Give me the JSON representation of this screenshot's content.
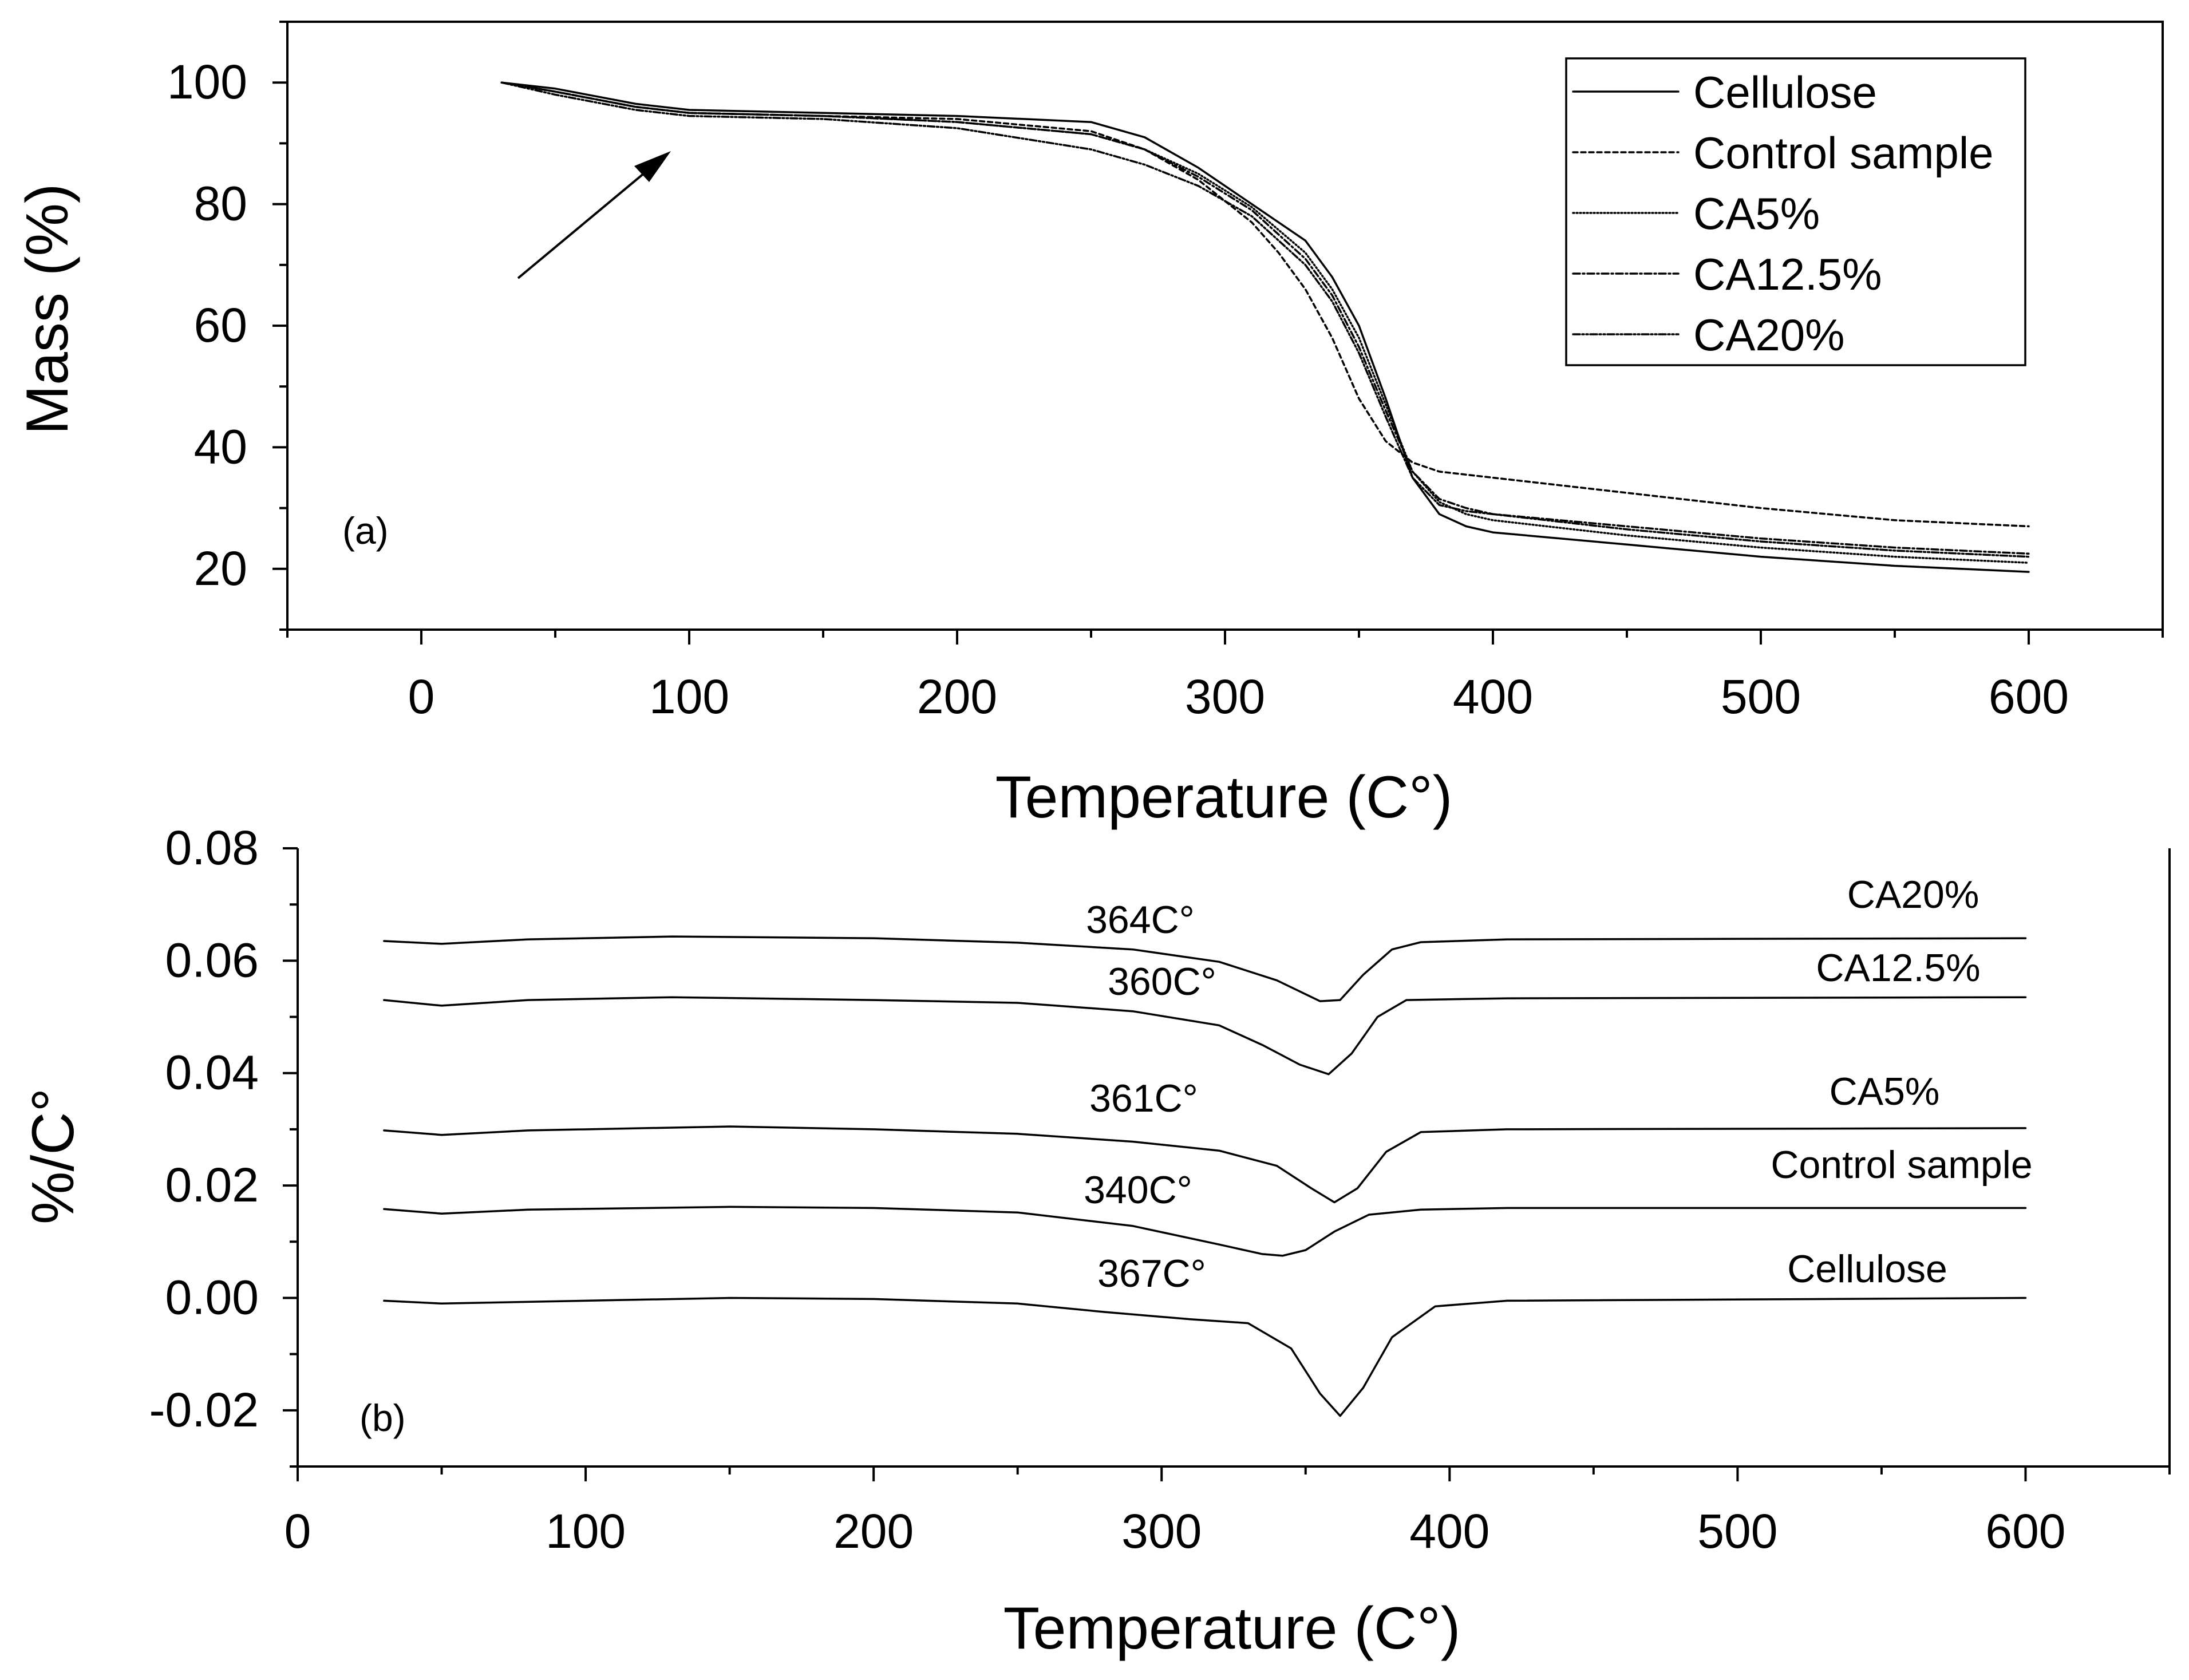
{
  "chart_data": [
    {
      "panel": "(a)",
      "type": "line",
      "xlabel": "Temperature (C°)",
      "ylabel": "Mass (%)",
      "xlim": [
        -50,
        650
      ],
      "ylim": [
        10,
        110
      ],
      "xticks": [
        0,
        100,
        200,
        300,
        400,
        500,
        600
      ],
      "yticks": [
        20,
        40,
        60,
        80,
        100
      ],
      "legend_position": "top-right",
      "series": [
        {
          "name": "Cellulose",
          "dash": "solid",
          "x": [
            30,
            50,
            80,
            100,
            150,
            200,
            250,
            270,
            290,
            310,
            330,
            340,
            350,
            360,
            370,
            380,
            390,
            400,
            450,
            500,
            550,
            600
          ],
          "y": [
            100,
            99,
            96.5,
            95.5,
            95,
            94.5,
            93.5,
            91,
            86,
            80,
            74,
            68,
            60,
            48,
            35,
            29,
            27,
            26,
            24,
            22,
            20.5,
            19.5
          ]
        },
        {
          "name": "Control sample",
          "dash": "8,6",
          "x": [
            30,
            50,
            80,
            100,
            150,
            200,
            250,
            270,
            290,
            310,
            320,
            330,
            340,
            350,
            360,
            370,
            380,
            400,
            450,
            500,
            550,
            600
          ],
          "y": [
            100,
            98.5,
            96,
            95,
            94.5,
            94,
            92,
            89,
            84,
            77,
            72,
            66,
            58,
            48,
            41,
            37.5,
            36,
            35,
            32.5,
            30,
            28,
            27
          ]
        },
        {
          "name": "CA5%",
          "dash": "2,4",
          "x": [
            30,
            50,
            80,
            100,
            150,
            200,
            250,
            270,
            290,
            310,
            330,
            340,
            350,
            360,
            370,
            380,
            390,
            400,
            450,
            500,
            550,
            600
          ],
          "y": [
            100,
            98.5,
            96,
            95,
            94.5,
            93.5,
            91.5,
            89,
            85,
            79.5,
            72,
            66,
            58,
            47,
            36,
            31,
            29,
            28,
            25.5,
            23.5,
            22,
            21
          ]
        },
        {
          "name": "CA12.5%",
          "dash": "12,5,3,5",
          "x": [
            30,
            50,
            80,
            100,
            150,
            200,
            250,
            270,
            290,
            310,
            330,
            340,
            350,
            360,
            370,
            380,
            390,
            400,
            450,
            500,
            550,
            600
          ],
          "y": [
            100,
            98.5,
            96,
            95,
            94.5,
            93.5,
            91.5,
            89,
            84.5,
            79,
            71,
            65,
            56.5,
            46,
            36,
            31.5,
            30,
            29,
            27,
            25,
            23.5,
            22.5
          ]
        },
        {
          "name": "CA20%",
          "dash": "12,4,3,4,3,4",
          "x": [
            30,
            50,
            80,
            100,
            150,
            200,
            250,
            270,
            290,
            310,
            330,
            340,
            350,
            360,
            370,
            380,
            390,
            400,
            450,
            500,
            550,
            600
          ],
          "y": [
            100,
            98,
            95.5,
            94.5,
            94,
            92.5,
            89,
            86.5,
            83,
            78,
            70,
            64,
            55.5,
            45,
            35,
            30.5,
            29.5,
            29,
            26.5,
            24.5,
            23,
            22
          ]
        }
      ],
      "annotations": [
        {
          "type": "arrow",
          "from": [
            35,
            68
          ],
          "to": [
            93,
            91
          ]
        }
      ]
    },
    {
      "panel": "(b)",
      "type": "line",
      "xlabel": "Temperature (C°)",
      "ylabel": "%/C°",
      "xlim": [
        0,
        650
      ],
      "ylim": [
        -0.03,
        0.08
      ],
      "xticks": [
        0,
        100,
        200,
        300,
        400,
        500,
        600
      ],
      "yticks": [
        "0.08",
        "0.06",
        "0.04",
        "0.02",
        "0.00",
        "-0.02"
      ],
      "series": [
        {
          "name": "CA20%",
          "peak_label": "364C°",
          "x": [
            30,
            50,
            80,
            130,
            200,
            250,
            290,
            320,
            340,
            355,
            362,
            370,
            380,
            390,
            420,
            600
          ],
          "y": [
            0.0635,
            0.063,
            0.0638,
            0.0643,
            0.064,
            0.0632,
            0.062,
            0.0598,
            0.0565,
            0.0528,
            0.053,
            0.0575,
            0.062,
            0.0633,
            0.0638,
            0.064
          ]
        },
        {
          "name": "CA12.5%",
          "peak_label": "360C°",
          "x": [
            30,
            50,
            80,
            130,
            200,
            250,
            290,
            320,
            335,
            348,
            358,
            366,
            375,
            385,
            420,
            600
          ],
          "y": [
            0.053,
            0.052,
            0.053,
            0.0535,
            0.053,
            0.0525,
            0.051,
            0.0485,
            0.045,
            0.0415,
            0.0398,
            0.0435,
            0.05,
            0.053,
            0.0533,
            0.0535
          ]
        },
        {
          "name": "CA5%",
          "peak_label": "361C°",
          "x": [
            30,
            50,
            80,
            150,
            200,
            250,
            290,
            320,
            340,
            352,
            360,
            368,
            378,
            390,
            420,
            600
          ],
          "y": [
            0.0298,
            0.029,
            0.0298,
            0.0305,
            0.03,
            0.0292,
            0.0278,
            0.0262,
            0.0235,
            0.0195,
            0.017,
            0.0195,
            0.026,
            0.0295,
            0.03,
            0.0302
          ]
        },
        {
          "name": "Control sample",
          "peak_label": "340C°",
          "x": [
            30,
            50,
            80,
            150,
            200,
            250,
            290,
            320,
            335,
            342,
            350,
            360,
            372,
            390,
            420,
            600
          ],
          "y": [
            0.0158,
            0.015,
            0.0157,
            0.0162,
            0.016,
            0.0152,
            0.0128,
            0.0095,
            0.0078,
            0.0075,
            0.0085,
            0.0118,
            0.0148,
            0.0157,
            0.016,
            0.016
          ]
        },
        {
          "name": "Cellulose",
          "peak_label": "367C°",
          "x": [
            30,
            50,
            100,
            150,
            200,
            250,
            280,
            310,
            330,
            345,
            355,
            362,
            370,
            380,
            395,
            420,
            600
          ],
          "y": [
            -0.0005,
            -0.001,
            -0.0005,
            0,
            -0.0002,
            -0.001,
            -0.0025,
            -0.0038,
            -0.0045,
            -0.009,
            -0.017,
            -0.021,
            -0.016,
            -0.007,
            -0.0015,
            -0.0005,
            0
          ]
        }
      ]
    }
  ],
  "panel_a": {
    "tag": "(a)",
    "xlabel": "Temperature (C°)",
    "ylabel": "Mass (%)",
    "xtick_labels": [
      "0",
      "100",
      "200",
      "300",
      "400",
      "500",
      "600"
    ],
    "ytick_labels": [
      "20",
      "40",
      "60",
      "80",
      "100"
    ],
    "legend": [
      "Cellulose",
      "Control sample",
      "CA5%",
      "CA12.5%",
      "CA20%"
    ]
  },
  "panel_b": {
    "tag": "(b)",
    "xlabel": "Temperature (C°)",
    "ylabel": "%/C°",
    "xtick_labels": [
      "0",
      "100",
      "200",
      "300",
      "400",
      "500",
      "600"
    ],
    "ytick_labels": [
      "0.08",
      "0.06",
      "0.04",
      "0.02",
      "0.00",
      "-0.02"
    ],
    "curve_labels": [
      "CA20%",
      "CA12.5%",
      "CA5%",
      "Control sample",
      "Cellulose"
    ],
    "peak_labels": [
      "364C°",
      "360C°",
      "361C°",
      "340C°",
      "367C°"
    ]
  }
}
